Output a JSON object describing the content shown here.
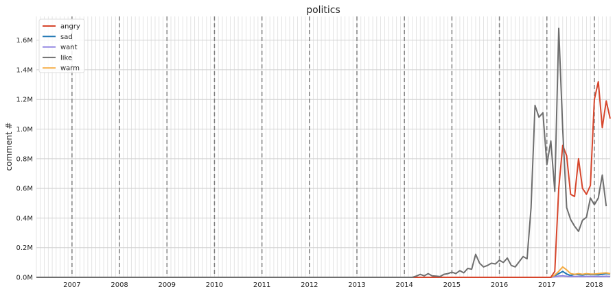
{
  "chart_data": {
    "type": "line",
    "title": "politics",
    "xlabel": "",
    "ylabel": "comment #",
    "ylim": [
      0,
      1760000
    ],
    "xlim": [
      "2006-04",
      "2018-05"
    ],
    "grid": "on (major dashed year lines + minor monthly gridlines)",
    "legend_position": "top-left",
    "x_ticks": [
      "2007",
      "2008",
      "2009",
      "2010",
      "2011",
      "2012",
      "2013",
      "2014",
      "2015",
      "2016",
      "2017",
      "2018"
    ],
    "y_ticks": [
      {
        "value": 0,
        "label": "0.0M"
      },
      {
        "value": 200000,
        "label": "0.2M"
      },
      {
        "value": 400000,
        "label": "0.4M"
      },
      {
        "value": 600000,
        "label": "0.6M"
      },
      {
        "value": 800000,
        "label": "0.8M"
      },
      {
        "value": 1000000,
        "label": "1.0M"
      },
      {
        "value": 1200000,
        "label": "1.2M"
      },
      {
        "value": 1400000,
        "label": "1.4M"
      },
      {
        "value": 1600000,
        "label": "1.6M"
      }
    ],
    "series": [
      {
        "name": "angry",
        "color": "#d6452b",
        "points": [
          [
            "2006-04",
            0
          ],
          [
            "2017-02",
            0
          ],
          [
            "2017-03",
            40000
          ],
          [
            "2017-04",
            600000
          ],
          [
            "2017-05",
            890000
          ],
          [
            "2017-06",
            820000
          ],
          [
            "2017-07",
            560000
          ],
          [
            "2017-08",
            545000
          ],
          [
            "2017-09",
            800000
          ],
          [
            "2017-10",
            600000
          ],
          [
            "2017-11",
            560000
          ],
          [
            "2017-12",
            620000
          ],
          [
            "2018-01",
            1200000
          ],
          [
            "2018-02",
            1320000
          ],
          [
            "2018-03",
            1010000
          ],
          [
            "2018-04",
            1190000
          ],
          [
            "2018-05",
            1070000
          ]
        ]
      },
      {
        "name": "sad",
        "color": "#1f77b4",
        "points": [
          [
            "2006-04",
            0
          ],
          [
            "2017-02",
            0
          ],
          [
            "2017-03",
            10000
          ],
          [
            "2017-04",
            25000
          ],
          [
            "2017-05",
            40000
          ],
          [
            "2017-06",
            22000
          ],
          [
            "2017-07",
            12000
          ],
          [
            "2017-08",
            20000
          ],
          [
            "2017-09",
            18000
          ],
          [
            "2017-10",
            15000
          ],
          [
            "2017-11",
            20000
          ],
          [
            "2017-12",
            18000
          ],
          [
            "2018-01",
            18000
          ],
          [
            "2018-02",
            17000
          ],
          [
            "2018-03",
            20000
          ],
          [
            "2018-04",
            25000
          ],
          [
            "2018-05",
            22000
          ]
        ]
      },
      {
        "name": "want",
        "color": "#8c7fe0",
        "points": [
          [
            "2006-04",
            0
          ],
          [
            "2017-02",
            0
          ],
          [
            "2017-03",
            4000
          ],
          [
            "2017-04",
            8000
          ],
          [
            "2017-05",
            10000
          ],
          [
            "2017-06",
            7000
          ],
          [
            "2017-07",
            5000
          ],
          [
            "2017-08",
            6000
          ],
          [
            "2017-09",
            6000
          ],
          [
            "2017-10",
            5000
          ],
          [
            "2017-11",
            6000
          ],
          [
            "2017-12",
            6000
          ],
          [
            "2018-01",
            6000
          ],
          [
            "2018-02",
            5000
          ],
          [
            "2018-03",
            6000
          ],
          [
            "2018-04",
            7000
          ],
          [
            "2018-05",
            6000
          ]
        ]
      },
      {
        "name": "like",
        "color": "#6e6e6e",
        "points": [
          [
            "2006-04",
            0
          ],
          [
            "2014-03",
            0
          ],
          [
            "2014-04",
            8000
          ],
          [
            "2014-05",
            20000
          ],
          [
            "2014-06",
            10000
          ],
          [
            "2014-07",
            25000
          ],
          [
            "2014-08",
            10000
          ],
          [
            "2014-09",
            8000
          ],
          [
            "2014-10",
            5000
          ],
          [
            "2014-11",
            20000
          ],
          [
            "2014-12",
            25000
          ],
          [
            "2015-01",
            35000
          ],
          [
            "2015-02",
            25000
          ],
          [
            "2015-03",
            45000
          ],
          [
            "2015-04",
            30000
          ],
          [
            "2015-05",
            60000
          ],
          [
            "2015-06",
            55000
          ],
          [
            "2015-07",
            155000
          ],
          [
            "2015-08",
            95000
          ],
          [
            "2015-09",
            70000
          ],
          [
            "2015-10",
            80000
          ],
          [
            "2015-11",
            95000
          ],
          [
            "2015-12",
            90000
          ],
          [
            "2016-01",
            115000
          ],
          [
            "2016-02",
            100000
          ],
          [
            "2016-03",
            130000
          ],
          [
            "2016-04",
            80000
          ],
          [
            "2016-05",
            70000
          ],
          [
            "2016-06",
            105000
          ],
          [
            "2016-07",
            140000
          ],
          [
            "2016-08",
            125000
          ],
          [
            "2016-09",
            470000
          ],
          [
            "2016-10",
            1160000
          ],
          [
            "2016-11",
            1080000
          ],
          [
            "2016-12",
            1110000
          ],
          [
            "2017-01",
            760000
          ],
          [
            "2017-02",
            920000
          ],
          [
            "2017-03",
            580000
          ],
          [
            "2017-04",
            1680000
          ],
          [
            "2017-05",
            1000000
          ],
          [
            "2017-06",
            470000
          ],
          [
            "2017-07",
            390000
          ],
          [
            "2017-08",
            345000
          ],
          [
            "2017-09",
            310000
          ],
          [
            "2017-10",
            385000
          ],
          [
            "2017-11",
            405000
          ],
          [
            "2017-12",
            535000
          ],
          [
            "2018-01",
            490000
          ],
          [
            "2018-02",
            535000
          ],
          [
            "2018-03",
            690000
          ],
          [
            "2018-04",
            480000
          ]
        ]
      },
      {
        "name": "warm",
        "color": "#f5ac42",
        "points": [
          [
            "2006-04",
            0
          ],
          [
            "2017-02",
            0
          ],
          [
            "2017-03",
            15000
          ],
          [
            "2017-04",
            40000
          ],
          [
            "2017-05",
            70000
          ],
          [
            "2017-06",
            50000
          ],
          [
            "2017-07",
            25000
          ],
          [
            "2017-08",
            20000
          ],
          [
            "2017-09",
            25000
          ],
          [
            "2017-10",
            20000
          ],
          [
            "2017-11",
            25000
          ],
          [
            "2017-12",
            22000
          ],
          [
            "2018-01",
            22000
          ],
          [
            "2018-02",
            25000
          ],
          [
            "2018-03",
            28000
          ],
          [
            "2018-04",
            30000
          ],
          [
            "2018-05",
            25000
          ]
        ]
      }
    ]
  }
}
